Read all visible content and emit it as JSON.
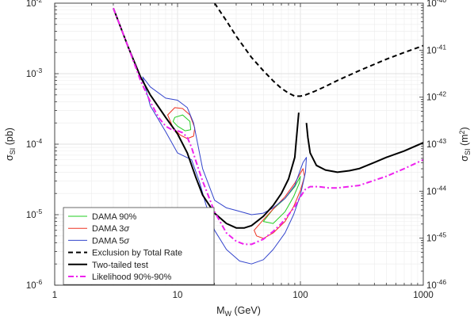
{
  "chart_data": {
    "type": "line",
    "title": "",
    "xlabel": {
      "main": "M",
      "sub": "W",
      "unit": " (GeV)"
    },
    "ylabel_left": {
      "main": "σ",
      "sub": "SI",
      "unit": " (pb)"
    },
    "ylabel_right": {
      "main": "σ",
      "sub": "SI",
      "unit": " (m",
      "sup": "2",
      "close": ")"
    },
    "x_scale": "log",
    "y_scale": "log",
    "xlim": [
      1,
      1000
    ],
    "ylim": [
      1e-06,
      0.01
    ],
    "grid": true,
    "legend_position": "lower-left",
    "x_ticks": [
      {
        "value": 1,
        "label": "1"
      },
      {
        "value": 10,
        "label": "10"
      },
      {
        "value": 100,
        "label": "100"
      },
      {
        "value": 1000,
        "label": "1000"
      }
    ],
    "y_ticks_left": [
      {
        "value": 1e-06,
        "base": "10",
        "exp": "-6"
      },
      {
        "value": 1e-05,
        "base": "10",
        "exp": "-5"
      },
      {
        "value": 0.0001,
        "base": "10",
        "exp": "-4"
      },
      {
        "value": 0.001,
        "base": "10",
        "exp": "-3"
      },
      {
        "value": 0.01,
        "base": "10",
        "exp": "-2"
      }
    ],
    "y_ticks_right": [
      {
        "value": 1e-46,
        "base": "10",
        "exp": "-46"
      },
      {
        "value": 1e-45,
        "base": "10",
        "exp": "-45"
      },
      {
        "value": 1e-44,
        "base": "10",
        "exp": "-44"
      },
      {
        "value": 1e-43,
        "base": "10",
        "exp": "-43"
      },
      {
        "value": 1e-42,
        "base": "10",
        "exp": "-42"
      },
      {
        "value": 1e-41,
        "base": "10",
        "exp": "-41"
      },
      {
        "value": 1e-40,
        "base": "10",
        "exp": "-40"
      }
    ],
    "right_axis_range_m2": [
      1e-46,
      1e-40
    ],
    "series": [
      {
        "name": "DAMA 90%",
        "label_main": "DAMA 90%",
        "label_sigma": "",
        "color": "#22cc22",
        "style": "solid",
        "width": 1.0,
        "closed": true,
        "x": [
          9.5,
          11.0,
          12.6,
          12.8,
          11.5,
          10.0,
          9.2,
          9.5
        ],
        "y": [
          0.00024,
          0.00026,
          0.00021,
          0.00016,
          0.000155,
          0.00018,
          0.00021,
          0.00024
        ],
        "x2": [
          50,
          60,
          75,
          90,
          100,
          98,
          88,
          75,
          60,
          50
        ],
        "y2": [
          8e-06,
          1.2e-05,
          1.7e-05,
          2.5e-05,
          3.5e-05,
          2.8e-05,
          1.8e-05,
          1.1e-05,
          7.5e-06,
          8e-06
        ]
      },
      {
        "name": "DAMA 3σ",
        "label_main": "DAMA 3",
        "label_sigma": "σ",
        "color": "#ee3322",
        "style": "solid",
        "width": 1.0,
        "closed": true,
        "x": [
          8.3,
          9.5,
          11.0,
          12.6,
          13.8,
          13.5,
          12.0,
          10.5,
          9.2,
          8.3
        ],
        "y": [
          0.00026,
          0.00033,
          0.00032,
          0.00026,
          0.00017,
          0.00013,
          0.00012,
          0.000135,
          0.00017,
          0.00026
        ],
        "x2": [
          42,
          50,
          60,
          75,
          90,
          105,
          108,
          100,
          88,
          75,
          60,
          50,
          44,
          42
        ],
        "y2": [
          6e-06,
          8.5e-06,
          1.2e-05,
          1.8e-05,
          2.8e-05,
          4.5e-05,
          3.5e-05,
          2.2e-05,
          1.3e-05,
          8e-06,
          5.5e-06,
          4.6e-06,
          5e-06,
          6e-06
        ]
      },
      {
        "name": "DAMA 5σ",
        "label_main": "DAMA 5",
        "label_sigma": "σ",
        "color": "#3344cc",
        "style": "solid",
        "width": 1.0,
        "closed": true,
        "x": [
          5.2,
          6.0,
          8.0,
          10.0,
          12.0,
          13.5,
          16,
          20,
          25,
          30,
          40,
          50,
          60,
          75,
          90,
          105,
          112,
          110,
          100,
          88,
          75,
          60,
          50,
          40,
          32,
          25,
          20,
          17,
          15,
          13,
          10,
          8,
          6,
          5.2
        ],
        "y": [
          0.0009,
          0.00065,
          0.00045,
          0.00042,
          0.00033,
          0.0002,
          4.5e-05,
          1.6e-05,
          1.25e-05,
          1.15e-05,
          1e-05,
          1.05e-05,
          1.25e-05,
          1.7e-05,
          2.6e-05,
          5.5e-05,
          6.5e-05,
          4e-05,
          1.9e-05,
          1e-05,
          5.5e-06,
          3.2e-06,
          2.3e-06,
          2e-06,
          2.2e-06,
          3.2e-06,
          6e-06,
          1.4e-05,
          3e-05,
          6e-05,
          7.5e-05,
          0.00015,
          0.00035,
          0.0009
        ]
      },
      {
        "name": "Exclusion by Total Rate",
        "label_main": "Exclusion by Total Rate",
        "label_sigma": "",
        "color": "#000000",
        "style": "dashed",
        "width": 2.0,
        "closed": false,
        "x": [
          20,
          25,
          30,
          40,
          50,
          60,
          70,
          80,
          90,
          100,
          110,
          130,
          160,
          200,
          300,
          500,
          700,
          1000
        ],
        "y": [
          0.01,
          0.0056,
          0.0034,
          0.0017,
          0.0011,
          0.00079,
          0.00062,
          0.00053,
          0.00048,
          0.00048,
          0.0005,
          0.00056,
          0.00066,
          0.0008,
          0.0011,
          0.0016,
          0.002,
          0.0025
        ]
      },
      {
        "name": "Two-tailed test",
        "label_main": "Two-tailed test",
        "label_sigma": "",
        "color": "#000000",
        "style": "solid",
        "width": 2.0,
        "closed": false,
        "x": [
          3,
          4,
          5,
          6,
          8,
          10,
          12,
          14,
          16,
          20,
          25,
          30,
          35,
          40,
          50,
          60,
          70,
          80,
          90,
          97
        ],
        "y": [
          0.0085,
          0.0023,
          0.0009,
          0.0005,
          0.00024,
          0.00014,
          7.5e-05,
          3.5e-05,
          1.9e-05,
          1.05e-05,
          7.5e-06,
          6.5e-06,
          6.5e-06,
          7e-06,
          9.5e-06,
          1.35e-05,
          2e-05,
          3.2e-05,
          6.5e-05,
          0.00028
        ],
        "x2": [
          112,
          115,
          120,
          135,
          160,
          200,
          250,
          300,
          400,
          500,
          700,
          1000
        ],
        "y2": [
          0.0002,
          0.000125,
          7.5e-05,
          5e-05,
          4.3e-05,
          4e-05,
          4.2e-05,
          4.5e-05,
          5.5e-05,
          6.5e-05,
          8e-05,
          0.000105
        ]
      },
      {
        "name": "Likelihood 90%-90%",
        "label_main": "Likelihood 90%-90%",
        "label_sigma": "",
        "color": "#ee22ee",
        "style": "dashdot",
        "width": 2.0,
        "closed": false,
        "x": [
          3,
          4,
          5,
          6,
          7,
          8,
          9,
          10,
          11,
          12,
          13,
          14,
          16,
          20,
          25,
          30,
          35,
          40,
          50,
          60,
          70,
          80,
          90,
          100,
          110,
          120,
          140,
          170,
          200,
          300,
          500,
          700,
          1000
        ],
        "y": [
          0.0085,
          0.0023,
          0.0008,
          0.0004,
          0.00024,
          0.00018,
          0.00016,
          0.000155,
          0.000145,
          0.000125,
          9e-05,
          6e-05,
          3e-05,
          1.1e-05,
          5.5e-06,
          4.2e-06,
          3.8e-06,
          3.8e-06,
          4.5e-06,
          5.8e-06,
          7.5e-06,
          1e-05,
          1.3e-05,
          1.8e-05,
          2.3e-05,
          2.5e-05,
          2.5e-05,
          2.4e-05,
          2.4e-05,
          2.6e-05,
          3.5e-05,
          4.5e-05,
          6e-05
        ]
      }
    ]
  }
}
